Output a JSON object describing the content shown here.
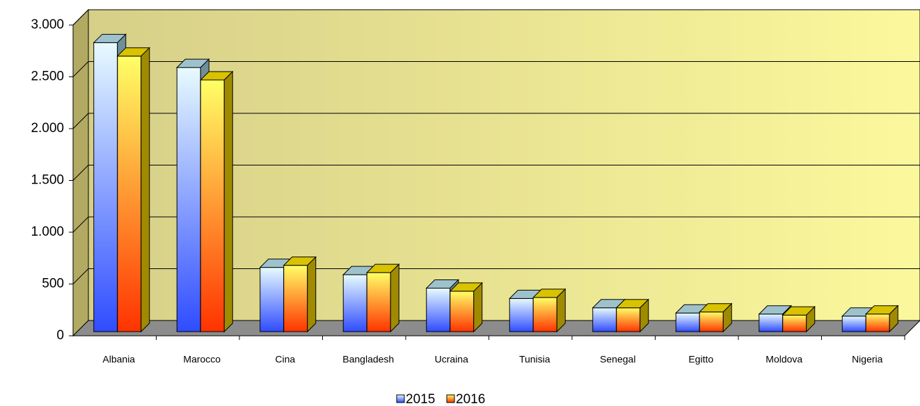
{
  "chart_data": {
    "type": "bar3d",
    "categories": [
      "Albania",
      "Marocco",
      "Cina",
      "Bangladesh",
      "Ucraina",
      "Tunisia",
      "Senegal",
      "Egitto",
      "Moldova",
      "Nigeria"
    ],
    "series": [
      {
        "name": "2015",
        "color": "#2f4cff",
        "values": [
          2830,
          2590,
          660,
          590,
          460,
          360,
          270,
          220,
          210,
          190
        ]
      },
      {
        "name": "2016",
        "color": "#ff3300",
        "values": [
          2700,
          2470,
          680,
          610,
          430,
          370,
          270,
          230,
          200,
          210
        ]
      }
    ],
    "ylim": [
      0,
      3000
    ],
    "yticks": [
      0,
      500,
      {
        "value": 1000,
        "label": "1.000"
      },
      {
        "value": 1500,
        "label": "1.500"
      },
      {
        "value": 2000,
        "label": "2.000"
      },
      {
        "value": 2500,
        "label": "2.500"
      },
      {
        "value": 3000,
        "label": "3.000"
      }
    ],
    "grid": true
  }
}
